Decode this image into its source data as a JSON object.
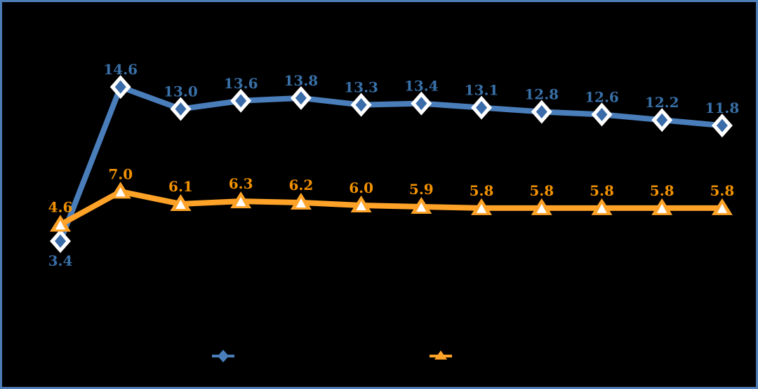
{
  "chart_data": {
    "type": "line",
    "title": "",
    "xlabel": "",
    "ylabel": "",
    "grid": false,
    "axes_visible": false,
    "background_color": "#000000",
    "border_color": "#4D7CB6",
    "x_count": 12,
    "ylim": [
      0,
      16
    ],
    "series": [
      {
        "name": "blue-diamond-series",
        "marker": "diamond",
        "line_color": "#4A7EBB",
        "marker_fill": "#3A6CA9",
        "marker_outline": "#FFFFFF",
        "label_color": "#3870A8",
        "values": [
          3.4,
          14.6,
          13.0,
          13.6,
          13.8,
          13.3,
          13.4,
          13.1,
          12.8,
          12.6,
          12.2,
          11.8
        ],
        "data_labels": [
          "3.4",
          "14.6",
          "13.0",
          "13.6",
          "13.8",
          "13.3",
          "13.4",
          "13.1",
          "12.8",
          "12.6",
          "12.2",
          "11.8"
        ],
        "label_positions": [
          "below",
          "above",
          "above",
          "above",
          "above",
          "above",
          "above",
          "above",
          "above",
          "above",
          "above",
          "above"
        ]
      },
      {
        "name": "orange-triangle-series",
        "marker": "triangle",
        "line_color": "#FFA328",
        "marker_fill": "#FFA328",
        "marker_outline": "#FFFFFF",
        "label_color": "#F29200",
        "values": [
          4.6,
          7.0,
          6.1,
          6.3,
          6.2,
          6.0,
          5.9,
          5.8,
          5.8,
          5.8,
          5.8,
          5.8
        ],
        "data_labels": [
          "4.6",
          "7.0",
          "6.1",
          "6.3",
          "6.2",
          "6.0",
          "5.9",
          "5.8",
          "5.8",
          "5.8",
          "5.8",
          "5.8"
        ],
        "label_positions": [
          "above",
          "above",
          "above",
          "above",
          "above",
          "above",
          "above",
          "above",
          "above",
          "above",
          "above",
          "above"
        ]
      }
    ],
    "legend": {
      "position": "bottom",
      "entries": [
        {
          "marker": "diamond-line",
          "color": "#4A7EBB",
          "label": ""
        },
        {
          "marker": "triangle-line",
          "color": "#FFA328",
          "label": ""
        }
      ]
    }
  }
}
